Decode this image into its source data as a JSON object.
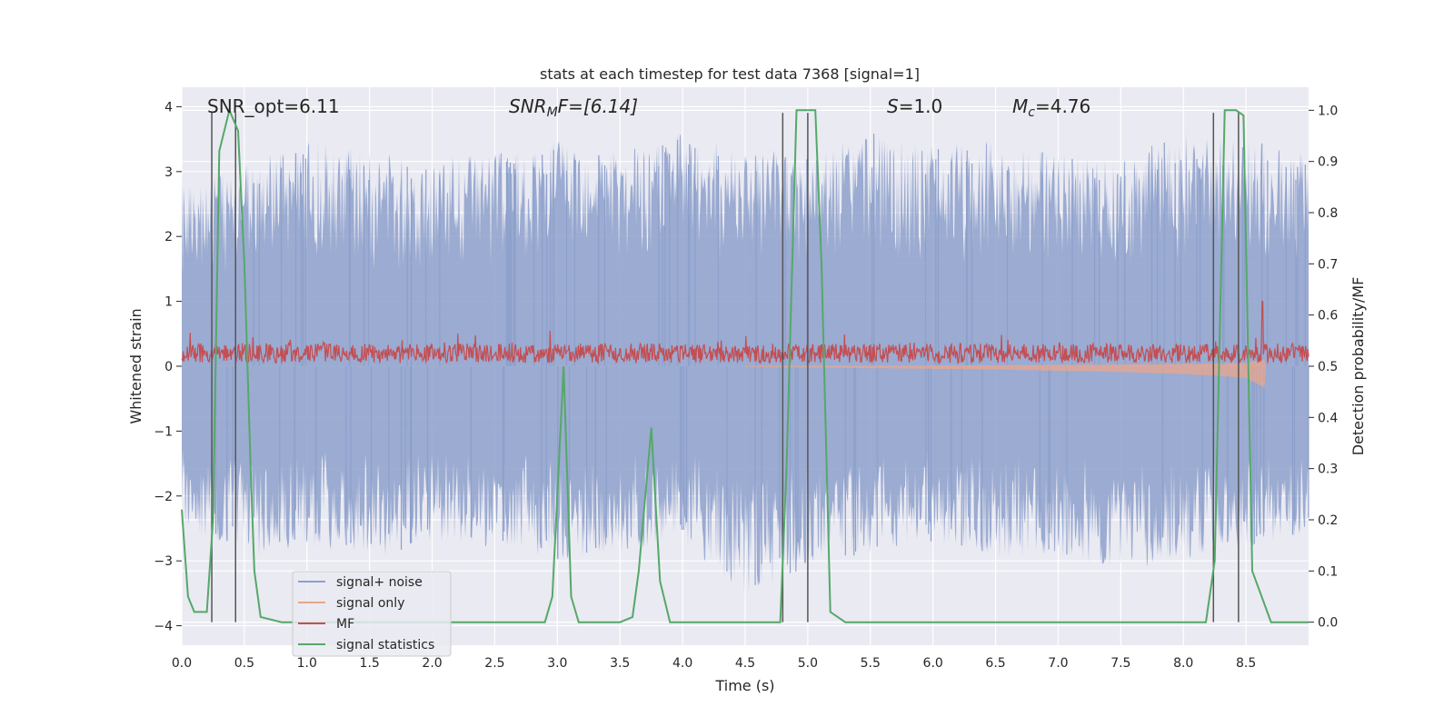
{
  "chart_data": {
    "type": "line",
    "title": "stats at each timestep for test data 7368 [signal=1]",
    "xlabel": "Time (s)",
    "ylabel": "Whitened strain",
    "ylabel_right": "Detection probability/MF",
    "xlim": [
      0.0,
      9.0
    ],
    "ylim": [
      -4.3,
      4.3
    ],
    "ylim_right": [
      -0.045,
      1.045
    ],
    "x_ticks": [
      0.0,
      0.5,
      1.0,
      1.5,
      2.0,
      2.5,
      3.0,
      3.5,
      4.0,
      4.5,
      5.0,
      5.5,
      6.0,
      6.5,
      7.0,
      7.5,
      8.0,
      8.5
    ],
    "x_tick_labels": [
      "0.0",
      "0.5",
      "1.0",
      "1.5",
      "2.0",
      "2.5",
      "3.0",
      "3.5",
      "4.0",
      "4.5",
      "5.0",
      "5.5",
      "6.0",
      "6.5",
      "7.0",
      "7.5",
      "8.0",
      "8.5"
    ],
    "y_ticks": [
      4,
      3,
      2,
      1,
      0,
      -1,
      -2,
      -3,
      -4
    ],
    "y_tick_labels": [
      "4",
      "3",
      "2",
      "1",
      "0",
      "−1",
      "−2",
      "−3",
      "−4"
    ],
    "y_ticks_right": [
      1.0,
      0.9,
      0.8,
      0.7,
      0.6,
      0.5,
      0.4,
      0.3,
      0.2,
      0.1,
      0.0
    ],
    "y_tick_labels_right": [
      "1.0",
      "0.9",
      "0.8",
      "0.7",
      "0.6",
      "0.5",
      "0.4",
      "0.3",
      "0.2",
      "0.1",
      "0.0"
    ],
    "grid": true,
    "legend_position": "lower-left",
    "legend": [
      {
        "label": "signal+ noise",
        "color": "#8da0cb"
      },
      {
        "label": "signal only",
        "color": "#e8a58c"
      },
      {
        "label": "MF",
        "color": "#c44e52"
      },
      {
        "label": "signal statistics",
        "color": "#55a868"
      }
    ],
    "annotations": {
      "snr_opt": "SNR_opt=6.11",
      "snr_mf_base": "SNR",
      "snr_mf_sub": "M",
      "snr_mf_rest": "F=[6.14]",
      "s_italic": "S",
      "s_rest": "=1.0",
      "mc_italic": "M",
      "mc_sub": "c",
      "mc_rest": "=4.76"
    },
    "noise_envelope": {
      "x": [
        0.0,
        0.5,
        1.0,
        1.5,
        2.0,
        2.5,
        3.0,
        3.5,
        4.0,
        4.5,
        5.0,
        5.5,
        6.0,
        6.5,
        7.0,
        7.5,
        8.0,
        8.5,
        9.0
      ],
      "upper": [
        3.0,
        3.1,
        3.5,
        3.3,
        3.2,
        3.3,
        3.5,
        3.3,
        3.6,
        3.4,
        3.3,
        3.6,
        3.4,
        3.5,
        3.3,
        3.2,
        3.6,
        3.5,
        3.3
      ],
      "lower": [
        -2.5,
        -3.0,
        -2.8,
        -3.0,
        -2.7,
        -2.8,
        -3.0,
        -2.9,
        -2.7,
        -3.6,
        -3.1,
        -2.9,
        -2.7,
        -3.0,
        -2.9,
        -3.2,
        -3.0,
        -2.8,
        -2.6
      ]
    },
    "mf_band": {
      "mean": 0.2,
      "amplitude": 0.15,
      "peak_x": 8.63,
      "peak_value": 1.0
    },
    "signal_only_chirp": {
      "x": [
        4.5,
        5.0,
        5.5,
        6.0,
        6.5,
        7.0,
        7.5,
        8.0,
        8.3,
        8.5,
        8.65,
        8.66
      ],
      "amplitude": [
        0.01,
        0.02,
        0.03,
        0.04,
        0.05,
        0.07,
        0.09,
        0.12,
        0.15,
        0.18,
        0.33,
        0.0
      ]
    },
    "signal_statistics": {
      "x": [
        0.0,
        0.05,
        0.1,
        0.2,
        0.25,
        0.3,
        0.38,
        0.45,
        0.5,
        0.55,
        0.58,
        0.63,
        0.8,
        1.0,
        1.5,
        2.0,
        2.5,
        2.9,
        2.96,
        3.05,
        3.11,
        3.17,
        3.25,
        3.5,
        3.6,
        3.65,
        3.75,
        3.82,
        3.9,
        4.0,
        4.5,
        4.78,
        4.83,
        4.91,
        4.99,
        5.06,
        5.11,
        5.18,
        5.3,
        6.0,
        6.5,
        7.0,
        8.0,
        8.18,
        8.25,
        8.33,
        8.42,
        8.48,
        8.55,
        8.7,
        9.0
      ],
      "y": [
        0.22,
        0.05,
        0.02,
        0.02,
        0.2,
        0.92,
        1.0,
        0.96,
        0.7,
        0.3,
        0.1,
        0.01,
        0.0,
        0.0,
        0.0,
        0.0,
        0.0,
        0.0,
        0.05,
        0.5,
        0.05,
        0.0,
        0.0,
        0.0,
        0.01,
        0.1,
        0.38,
        0.08,
        0.0,
        0.0,
        0.0,
        0.0,
        0.3,
        1.0,
        1.0,
        1.0,
        0.7,
        0.02,
        0.0,
        0.0,
        0.0,
        0.0,
        0.0,
        0.0,
        0.12,
        1.0,
        1.0,
        0.99,
        0.1,
        0.0,
        0.0
      ]
    },
    "detection_windows_x": [
      0.24,
      0.43,
      4.8,
      5.0,
      8.24,
      8.44
    ]
  }
}
